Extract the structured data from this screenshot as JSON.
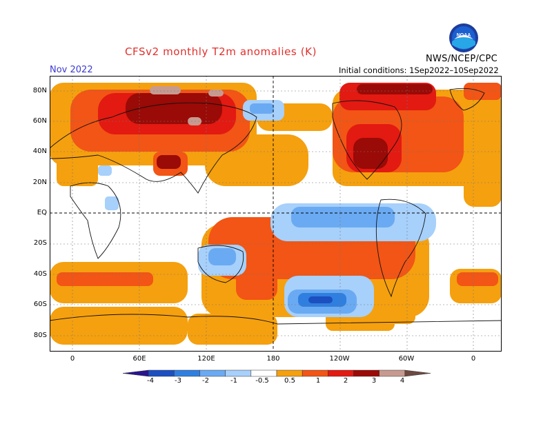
{
  "header": {
    "title": "CFSv2 monthly T2m anomalies (K)",
    "period": "Nov 2022",
    "initial_conditions": "Initial conditions: 1Sep2022–10Sep2022",
    "agency": "NWS/NCEP/CPC",
    "logo_text": "NOAA"
  },
  "map": {
    "lat_labels": [
      "80N",
      "60N",
      "40N",
      "20N",
      "EQ",
      "20S",
      "40S",
      "60S",
      "80S"
    ],
    "lon_labels": [
      "0",
      "60E",
      "120E",
      "180",
      "120W",
      "60W",
      "0"
    ],
    "projection": "cylindrical equidistant",
    "grid": "dashed"
  },
  "colorbar": {
    "labels": [
      "-4",
      "-3",
      "-2",
      "-1",
      "-0.5",
      "0.5",
      "1",
      "2",
      "3",
      "4"
    ],
    "colors": [
      "#2a1590",
      "#1c4fc0",
      "#2f7fe0",
      "#6aaaf2",
      "#a7d0fb",
      "#ffffff",
      "#f5a00f",
      "#f25515",
      "#e21a12",
      "#9a0a06",
      "#c79a90",
      "#6e4a40"
    ]
  }
}
